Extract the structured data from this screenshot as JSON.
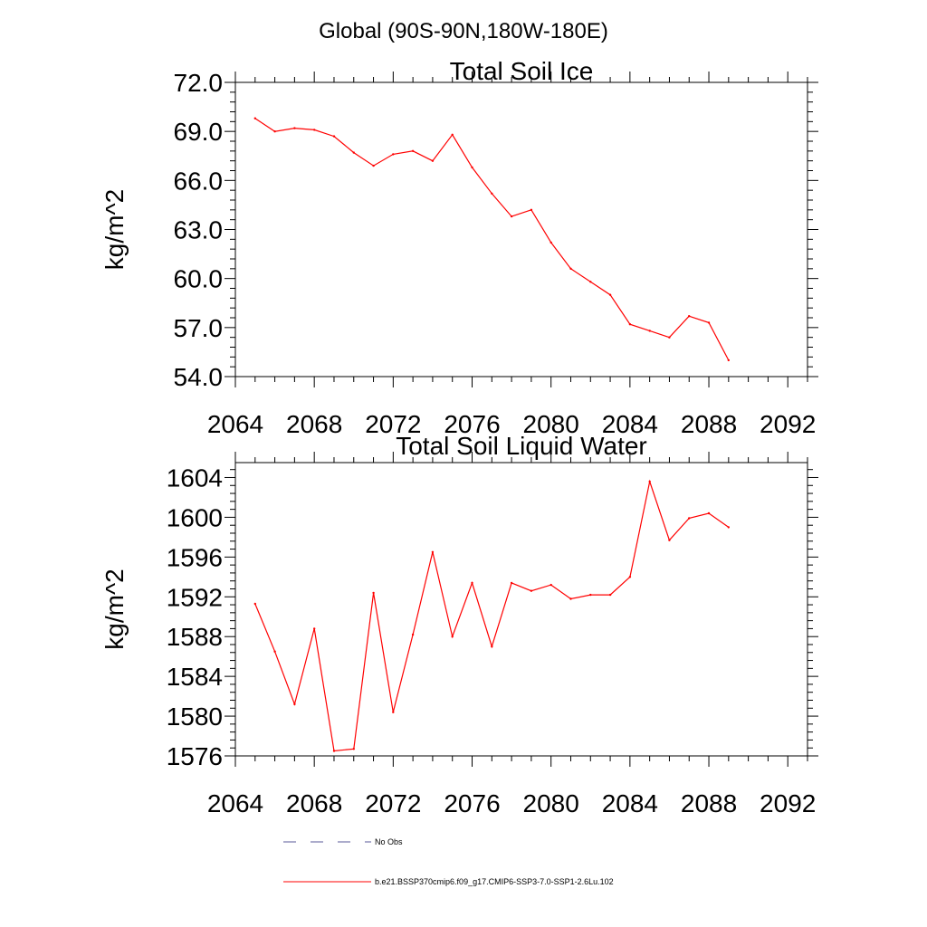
{
  "header": {
    "title": "Global (90S-90N,180W-180E)"
  },
  "colors": {
    "model_line": "#ff0000",
    "obs_line": "#5a5a9a",
    "axis": "#000000"
  },
  "chart_data": [
    {
      "type": "line",
      "title": "Total Soil Ice",
      "ylabel": "kg/m^2",
      "xlabel": "",
      "xlim": [
        2064,
        2093
      ],
      "ylim": [
        54.0,
        72.0
      ],
      "xticks": [
        "2064",
        "2068",
        "2072",
        "2076",
        "2080",
        "2084",
        "2088",
        "2092"
      ],
      "yticks": [
        "54.0",
        "57.0",
        "60.0",
        "63.0",
        "66.0",
        "69.0",
        "72.0"
      ],
      "grid": false,
      "series": [
        {
          "name": "b.e21.BSSP370cmip6.f09_g17.CMIP6-SSP3-7.0-SSP1-2.6Lu.102",
          "x": [
            2065,
            2066,
            2067,
            2068,
            2069,
            2070,
            2071,
            2072,
            2073,
            2074,
            2075,
            2076,
            2077,
            2078,
            2079,
            2080,
            2081,
            2082,
            2083,
            2084,
            2085,
            2086,
            2087,
            2088,
            2089
          ],
          "values": [
            69.8,
            69.0,
            69.2,
            69.1,
            68.7,
            67.7,
            66.9,
            67.6,
            67.8,
            67.2,
            68.8,
            66.8,
            65.2,
            63.8,
            64.2,
            62.2,
            60.6,
            59.8,
            59.0,
            57.2,
            56.8,
            56.4,
            57.7,
            57.3,
            55.0
          ]
        }
      ]
    },
    {
      "type": "line",
      "title": "Total Soil Liquid Water",
      "ylabel": "kg/m^2",
      "xlabel": "",
      "xlim": [
        2064,
        2093
      ],
      "ylim": [
        1576,
        1605.5
      ],
      "xticks": [
        "2064",
        "2068",
        "2072",
        "2076",
        "2080",
        "2084",
        "2088",
        "2092"
      ],
      "yticks": [
        "1576",
        "1580",
        "1584",
        "1588",
        "1592",
        "1596",
        "1600",
        "1604"
      ],
      "grid": false,
      "series": [
        {
          "name": "b.e21.BSSP370cmip6.f09_g17.CMIP6-SSP3-7.0-SSP1-2.6Lu.102",
          "x": [
            2065,
            2066,
            2067,
            2068,
            2069,
            2070,
            2071,
            2072,
            2073,
            2074,
            2075,
            2076,
            2077,
            2078,
            2079,
            2080,
            2081,
            2082,
            2083,
            2084,
            2085,
            2086,
            2087,
            2088,
            2089
          ],
          "values": [
            1591.3,
            1586.5,
            1581.2,
            1588.8,
            1576.5,
            1576.7,
            1592.4,
            1580.4,
            1588.2,
            1596.5,
            1588.0,
            1593.4,
            1587.0,
            1593.4,
            1592.6,
            1593.2,
            1591.8,
            1592.2,
            1592.2,
            1594.0,
            1603.6,
            1597.7,
            1599.9,
            1600.4,
            1599.0
          ]
        }
      ]
    }
  ],
  "legend": {
    "placement": "bottom",
    "items": [
      {
        "label": "No Obs",
        "style": "dashed"
      },
      {
        "label": "b.e21.BSSP370cmip6.f09_g17.CMIP6-SSP3-7.0-SSP1-2.6Lu.102",
        "style": "solid"
      }
    ]
  }
}
